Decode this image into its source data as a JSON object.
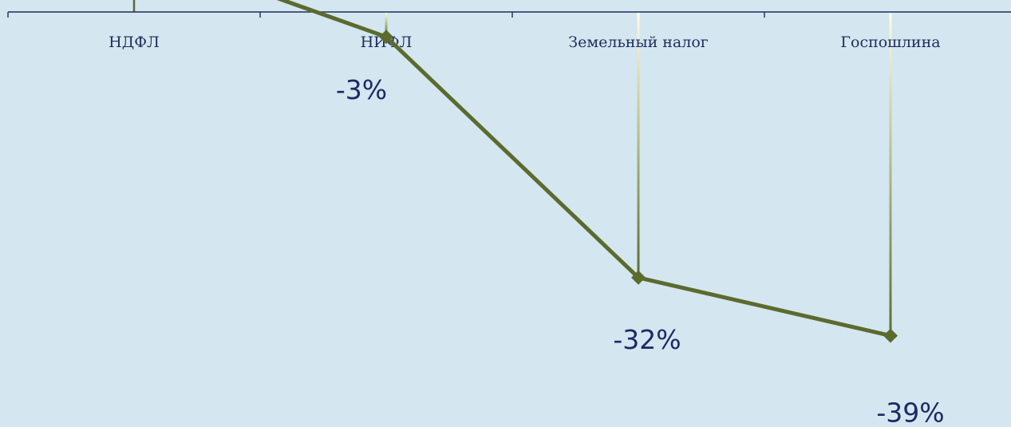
{
  "chart_data": {
    "type": "line",
    "categories": [
      "НДФЛ",
      "НИФЛ",
      "Земельный налог",
      "Госпошлина"
    ],
    "series": [
      {
        "values": [
          null,
          -3,
          -32,
          -39
        ],
        "color": "#5b6b2e"
      }
    ],
    "data_labels": [
      "",
      "-3%",
      "-32%",
      "-39%"
    ],
    "value_unit": "%",
    "colors": {
      "line": "#5b6b2e",
      "axis": "#1f2d5c",
      "background": "#d4e6ef",
      "label": "#1a2a66"
    }
  }
}
